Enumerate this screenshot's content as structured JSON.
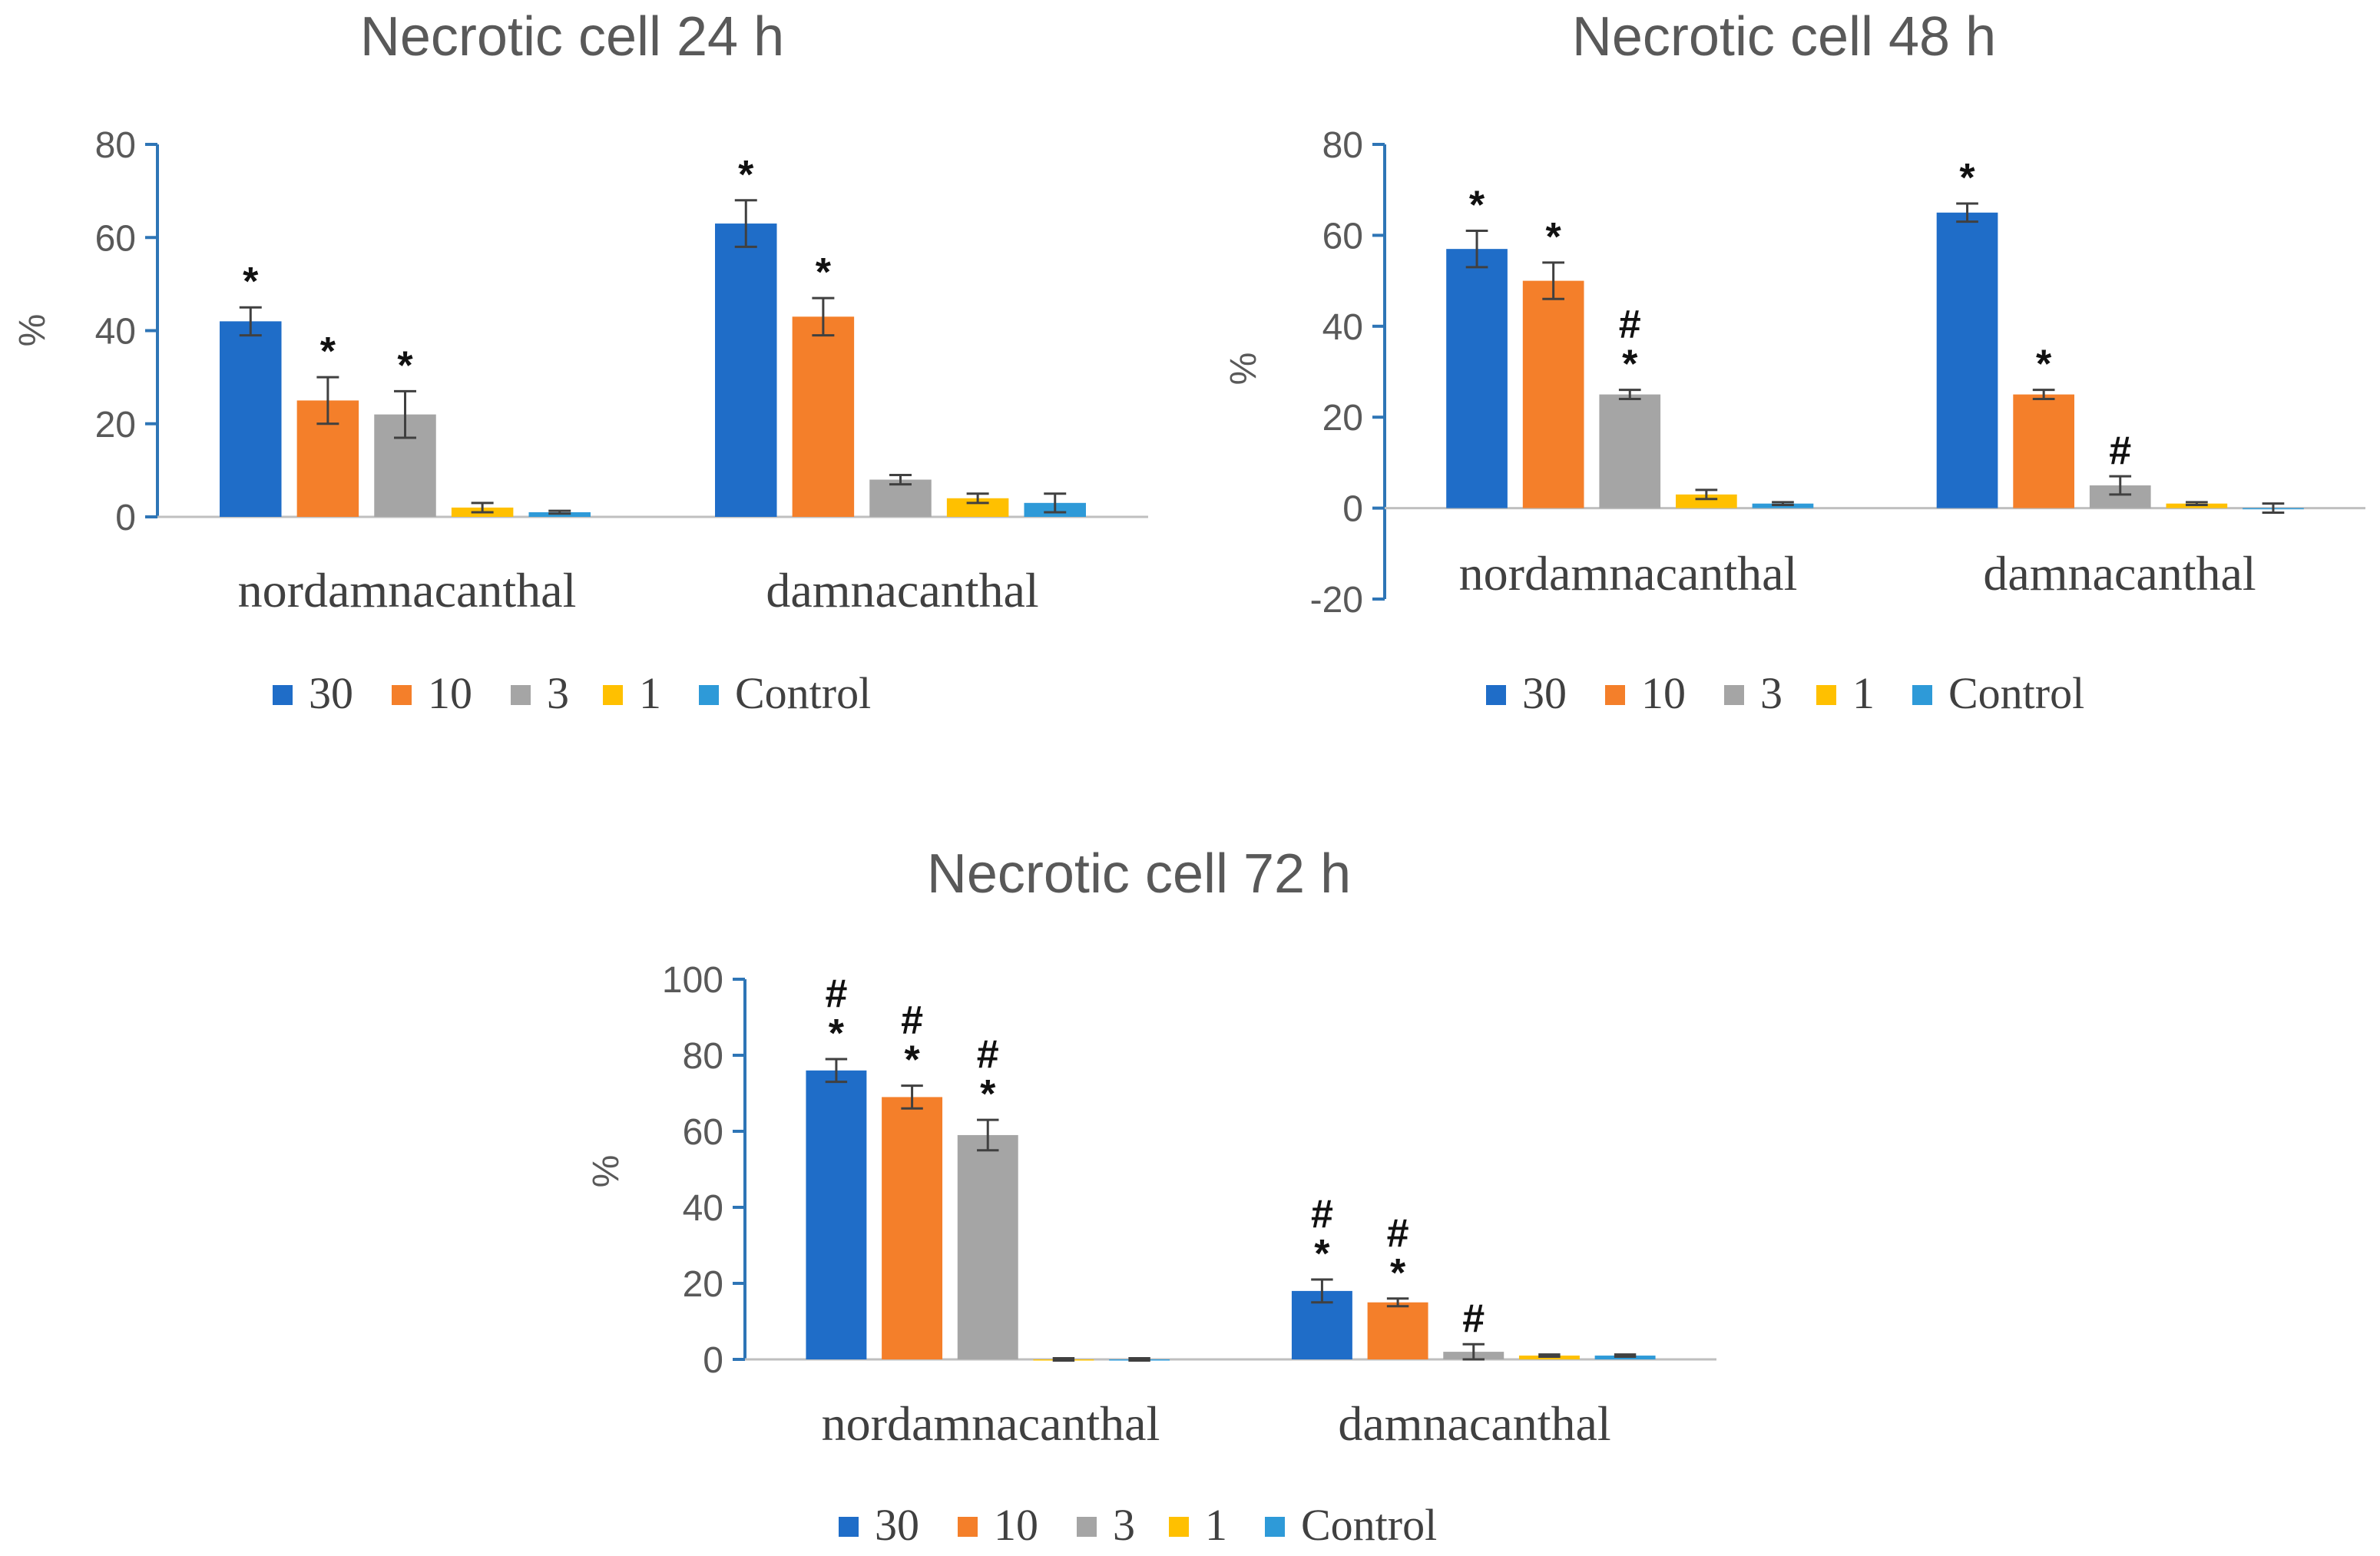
{
  "chart_data": [
    {
      "type": "bar",
      "title": "Necrotic cell 24 h",
      "ylabel": "%",
      "ylim": [
        0,
        80
      ],
      "yticks": [
        0,
        20,
        40,
        60,
        80
      ],
      "categories": [
        "nordamnacanthal",
        "damnacanthal"
      ],
      "legend_position": "bottom",
      "series": [
        {
          "name": "30",
          "color": "#1f6dc8",
          "values": [
            42,
            63
          ],
          "errors": [
            3,
            5
          ],
          "annotations": [
            [
              "*"
            ],
            [
              "*"
            ]
          ]
        },
        {
          "name": "10",
          "color": "#f47f2a",
          "values": [
            25,
            43
          ],
          "errors": [
            5,
            4
          ],
          "annotations": [
            [
              "*"
            ],
            [
              "*"
            ]
          ]
        },
        {
          "name": "3",
          "color": "#a5a5a5",
          "values": [
            22,
            8
          ],
          "errors": [
            5,
            1
          ],
          "annotations": [
            [
              "*"
            ],
            []
          ]
        },
        {
          "name": "1",
          "color": "#ffc000",
          "values": [
            2,
            4
          ],
          "errors": [
            1,
            1
          ],
          "annotations": [
            [],
            []
          ]
        },
        {
          "name": "Control",
          "color": "#2e9ad8",
          "values": [
            1,
            3
          ],
          "errors": [
            0.3,
            2
          ],
          "annotations": [
            [],
            []
          ]
        }
      ]
    },
    {
      "type": "bar",
      "title": "Necrotic cell 48 h",
      "ylabel": "%",
      "ylim": [
        -20,
        80
      ],
      "yticks": [
        -20,
        0,
        20,
        40,
        60,
        80
      ],
      "categories": [
        "nordamnacanthal",
        "damnacanthal"
      ],
      "legend_position": "bottom",
      "series": [
        {
          "name": "30",
          "color": "#1f6dc8",
          "values": [
            57,
            65
          ],
          "errors": [
            4,
            2
          ],
          "annotations": [
            [
              "*"
            ],
            [
              "*"
            ]
          ]
        },
        {
          "name": "10",
          "color": "#f47f2a",
          "values": [
            50,
            25
          ],
          "errors": [
            4,
            1
          ],
          "annotations": [
            [
              "*"
            ],
            [
              "*"
            ]
          ]
        },
        {
          "name": "3",
          "color": "#a5a5a5",
          "values": [
            25,
            5
          ],
          "errors": [
            1,
            2
          ],
          "annotations": [
            [
              "*",
              "#"
            ],
            [
              "#"
            ]
          ]
        },
        {
          "name": "1",
          "color": "#ffc000",
          "values": [
            3,
            1
          ],
          "errors": [
            1,
            0.3
          ],
          "annotations": [
            [],
            []
          ]
        },
        {
          "name": "Control",
          "color": "#2e9ad8",
          "values": [
            1,
            0
          ],
          "errors": [
            0.3,
            1
          ],
          "annotations": [
            [],
            []
          ]
        }
      ]
    },
    {
      "type": "bar",
      "title": "Necrotic cell 72 h",
      "ylabel": "%",
      "ylim": [
        0,
        100
      ],
      "yticks": [
        0,
        20,
        40,
        60,
        80,
        100
      ],
      "categories": [
        "nordamnacanthal",
        "damnacanthal"
      ],
      "legend_position": "bottom",
      "series": [
        {
          "name": "30",
          "color": "#1f6dc8",
          "values": [
            76,
            18
          ],
          "errors": [
            3,
            3
          ],
          "annotations": [
            [
              "*",
              "#"
            ],
            [
              "*",
              "#"
            ]
          ]
        },
        {
          "name": "10",
          "color": "#f47f2a",
          "values": [
            69,
            15
          ],
          "errors": [
            3,
            1
          ],
          "annotations": [
            [
              "*",
              "#"
            ],
            [
              "*",
              "#"
            ]
          ]
        },
        {
          "name": "3",
          "color": "#a5a5a5",
          "values": [
            59,
            2
          ],
          "errors": [
            4,
            2
          ],
          "annotations": [
            [
              "*",
              "#"
            ],
            [
              "#"
            ]
          ]
        },
        {
          "name": "1",
          "color": "#ffc000",
          "values": [
            0,
            1
          ],
          "errors": [
            0.3,
            0.3
          ],
          "annotations": [
            [],
            []
          ]
        },
        {
          "name": "Control",
          "color": "#2e9ad8",
          "values": [
            0,
            1
          ],
          "errors": [
            0.3,
            0.3
          ],
          "annotations": [
            [],
            []
          ]
        }
      ]
    }
  ]
}
